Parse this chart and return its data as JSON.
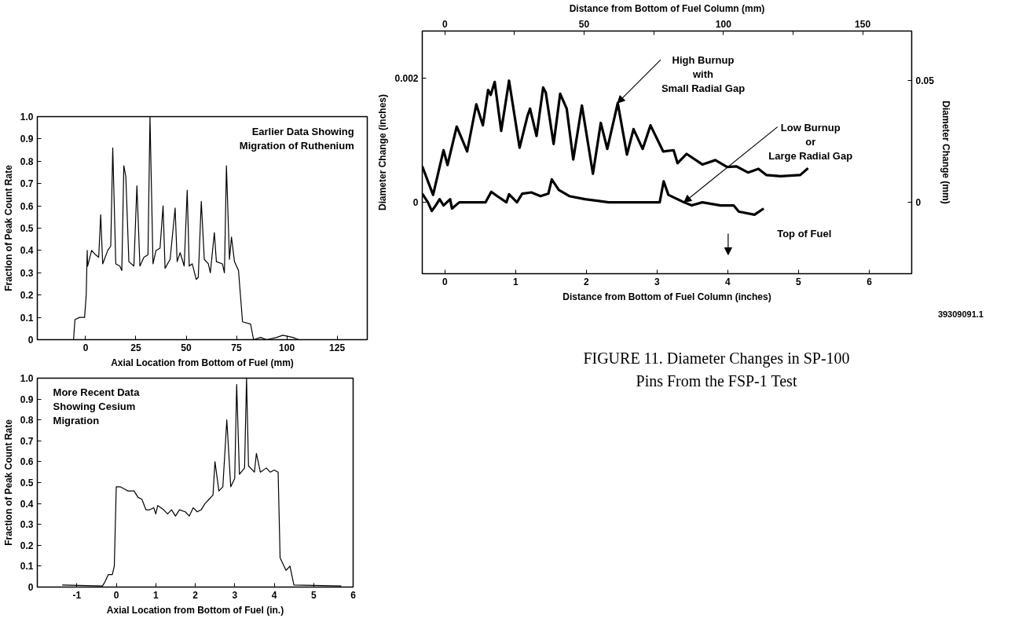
{
  "chart_data": [
    {
      "type": "line",
      "xlabel": "Axial Location from Bottom of Fuel (mm)",
      "ylabel": "Fraction of Peak Count Rate",
      "xlim": [
        -24,
        140
      ],
      "xticks": [
        0,
        25,
        50,
        75,
        100,
        125
      ],
      "ylim": [
        0,
        1
      ],
      "yticks": [
        0,
        0.1,
        0.2,
        0.3,
        0.4,
        0.5,
        0.6,
        0.7,
        0.8,
        0.9,
        {
          "value": 1,
          "label": "1.0"
        }
      ],
      "grid": false,
      "annotations": [
        "Earlier Data Showing\nMigration of Ruthenium"
      ],
      "series": [
        {
          "color": "#000000",
          "x": [
            -24,
            -6,
            -5.3,
            -3,
            -0.5,
            0.3,
            0.8,
            1,
            3,
            5,
            6.5,
            7.5,
            8.5,
            11,
            12.5,
            13.5,
            15,
            17,
            18,
            19,
            20,
            21.5,
            24,
            25.5,
            27,
            29,
            31,
            32,
            33.5,
            35,
            37,
            38.5,
            39.5,
            42,
            44.5,
            45.5,
            47,
            49,
            50.5,
            51.5,
            53,
            55,
            56,
            57.5,
            59,
            61,
            62,
            64,
            65,
            68,
            69,
            70,
            71.5,
            72.5,
            74,
            76,
            78,
            82,
            83.5,
            87,
            90,
            95,
            98,
            103,
            106,
            140
          ],
          "values": [
            0,
            0,
            0.09,
            0.1,
            0.1,
            0.2,
            0.4,
            0.33,
            0.4,
            0.38,
            0.37,
            0.56,
            0.34,
            0.4,
            0.42,
            0.86,
            0.34,
            0.33,
            0.31,
            0.78,
            0.73,
            0.35,
            0.33,
            0.69,
            0.33,
            0.37,
            0.38,
            1.0,
            0.34,
            0.4,
            0.41,
            0.6,
            0.32,
            0.36,
            0.59,
            0.35,
            0.39,
            0.33,
            0.67,
            0.33,
            0.34,
            0.27,
            0.28,
            0.62,
            0.36,
            0.34,
            0.3,
            0.48,
            0.35,
            0.34,
            0.3,
            0.78,
            0.36,
            0.46,
            0.35,
            0.31,
            0.08,
            0.07,
            0,
            0.01,
            0,
            0.01,
            0.02,
            0.01,
            0,
            0
          ]
        }
      ]
    },
    {
      "type": "line",
      "xlabel": "Axial Location from Bottom of Fuel (in.)",
      "ylabel": "Fraction of Peak Count Rate",
      "xlim": [
        -2,
        6
      ],
      "xticks": [
        -1,
        0,
        1,
        2,
        3,
        4,
        5,
        6
      ],
      "ylim": [
        0,
        1
      ],
      "yticks": [
        0,
        0.1,
        0.2,
        0.3,
        0.4,
        0.5,
        0.6,
        0.7,
        0.8,
        0.9,
        {
          "value": 1,
          "label": "1.0"
        }
      ],
      "grid": false,
      "annotations": [
        "More Recent Data\nShowing Cesium\nMigration"
      ],
      "series": [
        {
          "color": "#000000",
          "x": [
            -1.37,
            -0.35,
            -0.3,
            -0.2,
            -0.1,
            -0.05,
            0,
            0.1,
            0.2,
            0.3,
            0.45,
            0.55,
            0.65,
            0.75,
            0.85,
            0.95,
            1.0,
            1.05,
            1.2,
            1.3,
            1.4,
            1.5,
            1.6,
            1.75,
            1.85,
            1.95,
            2.05,
            2.15,
            2.25,
            2.35,
            2.45,
            2.5,
            2.6,
            2.7,
            2.8,
            2.9,
            3.0,
            3.05,
            3.12,
            3.25,
            3.3,
            3.35,
            3.5,
            3.55,
            3.65,
            3.8,
            3.9,
            4.0,
            4.1,
            4.15,
            4.3,
            4.4,
            4.5,
            5.7
          ],
          "values": [
            0.01,
            0.005,
            0.02,
            0.06,
            0.06,
            0.1,
            0.48,
            0.48,
            0.47,
            0.46,
            0.46,
            0.43,
            0.42,
            0.37,
            0.37,
            0.38,
            0.35,
            0.39,
            0.37,
            0.35,
            0.37,
            0.34,
            0.37,
            0.36,
            0.34,
            0.38,
            0.36,
            0.37,
            0.4,
            0.42,
            0.44,
            0.6,
            0.46,
            0.48,
            0.8,
            0.48,
            0.52,
            0.97,
            0.54,
            0.57,
            1.0,
            0.58,
            0.55,
            0.64,
            0.55,
            0.57,
            0.55,
            0.56,
            0.55,
            0.14,
            0.08,
            0.1,
            0.01,
            0.005
          ]
        }
      ]
    },
    {
      "type": "line",
      "xlabel": "Distance from Bottom of Fuel Column (inches)",
      "x2label": "Distance from Bottom of Fuel Column (mm)",
      "ylabel": "Diameter Change (inches)",
      "y2label": "Diameter Change (mm)",
      "xlim": [
        -0.32,
        6.6
      ],
      "xticks": [
        0,
        1,
        2,
        3,
        4,
        5,
        6
      ],
      "x2lim": [
        -8.1,
        167.6
      ],
      "x2ticks": [
        0,
        {
          "value": 25,
          "label": null
        },
        50,
        {
          "value": 75,
          "label": null
        },
        100,
        {
          "value": 125,
          "label": null
        },
        150
      ],
      "ylim": [
        -0.00115,
        0.00276
      ],
      "yticks": [
        0,
        0.002
      ],
      "y2lim": [
        -0.0292,
        0.0701
      ],
      "y2ticks": [
        0,
        0.05
      ],
      "grid": false,
      "annotations": [
        {
          "text": "High Burnup\nwith\nSmall Radial Gap",
          "x": 2.44,
          "y": 0.0016
        },
        {
          "text": "Low Burnup\nor\nLarge Radial Gap",
          "x": 3.381,
          "y": 0
        },
        "Top of Fuel",
        "39309091.1",
        "FIGURE 11.  Diameter Changes in SP-100\nPins From the FSP-1 Test"
      ],
      "series": [
        {
          "color": "#000000",
          "x": [
            -0.32,
            -0.167,
            -0.019,
            0.037,
            0.167,
            0.315,
            0.444,
            0.537,
            0.611,
            0.648,
            0.704,
            0.796,
            0.907,
            1.056,
            1.167,
            1.204,
            1.296,
            1.389,
            1.426,
            1.537,
            1.63,
            1.722,
            1.815,
            1.937,
            2.093,
            2.204,
            2.296,
            2.444,
            2.574,
            2.667,
            2.796,
            2.907,
            3.086,
            3.234,
            3.289,
            3.418,
            3.64,
            3.824,
            3.99,
            4.12,
            4.286,
            4.433,
            4.544,
            4.747,
            5.024,
            5.135
          ],
          "values": [
            0.00058,
            0.00012,
            0.00084,
            0.0006,
            0.00122,
            0.00082,
            0.00158,
            0.00124,
            0.00181,
            0.00173,
            0.00194,
            0.00115,
            0.00196,
            0.00088,
            0.00139,
            0.00151,
            0.00107,
            0.00185,
            0.00177,
            0.00094,
            0.00175,
            0.00151,
            0.00069,
            0.00156,
            0.00046,
            0.00128,
            0.00086,
            0.0016,
            0.00077,
            0.00118,
            0.00086,
            0.00124,
            0.00082,
            0.00084,
            0.00063,
            0.00078,
            0.00061,
            0.00068,
            0.00057,
            0.00058,
            0.00048,
            0.00054,
            0.00044,
            0.00042,
            0.00044,
            0.00055
          ]
        },
        {
          "color": "#000000",
          "x": [
            -0.32,
            -0.24,
            -0.185,
            -0.13,
            -0.074,
            -0.019,
            0.074,
            0.1,
            0.204,
            0.389,
            0.574,
            0.656,
            0.741,
            0.87,
            0.907,
            1.019,
            1.093,
            1.222,
            1.352,
            1.463,
            1.511,
            1.611,
            1.759,
            1.981,
            2.315,
            2.5,
            2.87,
            3.037,
            3.093,
            3.16,
            3.381,
            3.49,
            3.64,
            3.898,
            4.082,
            4.156,
            4.378,
            4.507
          ],
          "values": [
            0.00014,
            0,
            -0.00014,
            -5e-05,
            5e-05,
            -5e-05,
            5e-05,
            -0.0001,
            0,
            0,
            0,
            0.00017,
            0.0001,
            0,
            0.00013,
            0,
            0.00014,
            0.00016,
            0.0001,
            0.00014,
            0.00037,
            0.0002,
            0.0001,
            5e-05,
            0,
            0,
            0,
            0,
            0.00034,
            0.00012,
            0,
            -5e-05,
            0,
            -5e-05,
            -5e-05,
            -0.00015,
            -0.0002,
            -0.0001
          ]
        }
      ]
    }
  ]
}
